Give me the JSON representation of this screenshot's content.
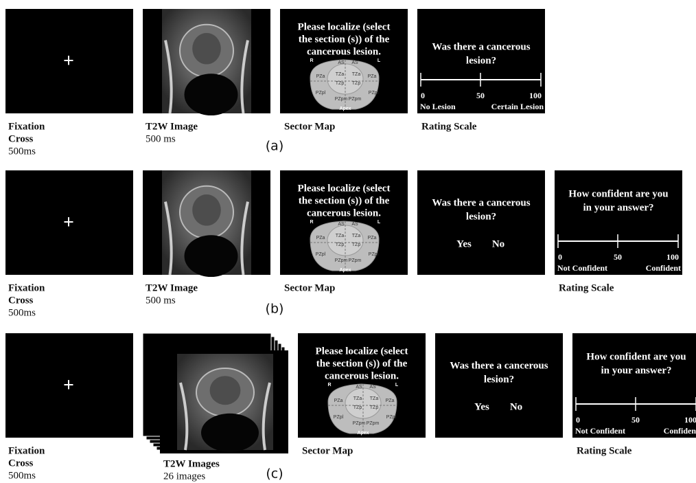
{
  "rows": [
    {
      "label": "(a)",
      "panels": [
        {
          "symbol": "+",
          "caption": [
            "Fixation",
            "Cross"
          ],
          "duration": "500ms"
        },
        {
          "caption": [
            "T2W Image"
          ],
          "duration": "500 ms"
        },
        {
          "prompt": [
            "Please localize (select",
            "the section (s)) of the",
            "cancerous lesion."
          ],
          "sectors": [
            "R",
            "AS",
            "AS",
            "L",
            "PZa",
            "TZa",
            "TZa",
            "PZa",
            "TZp",
            "TZp",
            "PZpl",
            "PZpl",
            "PZpm",
            "PZpm",
            "Apex"
          ],
          "caption": [
            "Sector Map"
          ]
        },
        {
          "question": [
            "Was there a cancerous",
            "lesion?"
          ],
          "ticks": [
            "0",
            "50",
            "100"
          ],
          "ends": [
            "No Lesion",
            "Certain Lesion"
          ],
          "caption": [
            "Rating Scale"
          ]
        }
      ]
    },
    {
      "label": "(b)",
      "panels": [
        {
          "symbol": "+",
          "caption": [
            "Fixation",
            "Cross"
          ],
          "duration": "500ms"
        },
        {
          "caption": [
            "T2W Image"
          ],
          "duration": "500 ms"
        },
        {
          "prompt": [
            "Please localize (select",
            "the section (s)) of the",
            "cancerous lesion."
          ],
          "sectors": [
            "R",
            "AS",
            "AS",
            "L",
            "PZa",
            "TZa",
            "TZa",
            "PZa",
            "TZp",
            "TZp",
            "PZpl",
            "PZpl",
            "PZpm",
            "PZpm",
            "Apex"
          ],
          "caption": [
            "Sector Map"
          ]
        },
        {
          "question": [
            "Was there a cancerous",
            "lesion?"
          ],
          "answers": [
            "Yes",
            "No"
          ]
        },
        {
          "question": [
            "How confident are you",
            "in your answer?"
          ],
          "ticks": [
            "0",
            "50",
            "100"
          ],
          "ends": [
            "Not Confident",
            "Confident"
          ],
          "caption": [
            "Rating Scale"
          ]
        }
      ]
    },
    {
      "label": "(c)",
      "panels": [
        {
          "symbol": "+",
          "caption": [
            "Fixation",
            "Cross"
          ],
          "duration": "500ms"
        },
        {
          "caption": [
            "T2W Images"
          ],
          "duration": "26 images"
        },
        {
          "prompt": [
            "Please localize (select",
            "the section (s)) of the",
            "cancerous lesion."
          ],
          "sectors": [
            "R",
            "AS",
            "AS",
            "L",
            "PZa",
            "TZa",
            "TZa",
            "PZa",
            "TZp",
            "TZp",
            "PZpl",
            "PZpl",
            "PZpm",
            "PZpm",
            "Apex"
          ],
          "caption": [
            "Sector Map"
          ]
        },
        {
          "question": [
            "Was there a cancerous",
            "lesion?"
          ],
          "answers": [
            "Yes",
            "No"
          ]
        },
        {
          "question": [
            "How confident are you",
            "in your answer?"
          ],
          "ticks": [
            "0",
            "50",
            "100"
          ],
          "ends": [
            "Not Confident",
            "Confident"
          ],
          "caption": [
            "Rating Scale"
          ]
        }
      ]
    }
  ]
}
